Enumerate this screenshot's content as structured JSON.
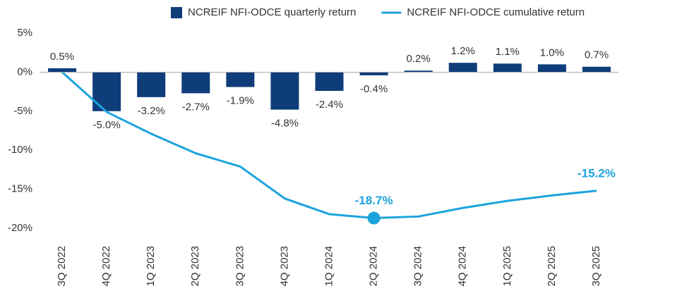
{
  "chart_data": {
    "type": "bar-line",
    "categories": [
      "3Q 2022",
      "4Q 2022",
      "1Q 2023",
      "2Q 2023",
      "3Q 2023",
      "4Q 2023",
      "1Q 2024",
      "2Q 2024",
      "3Q 2024",
      "4Q 2024",
      "1Q 2025",
      "2Q 2025",
      "3Q 2025"
    ],
    "series": [
      {
        "name": "NCREIF NFI-ODCE quarterly return",
        "type": "bar",
        "color": "#0f3d7a",
        "values": [
          0.5,
          -5.0,
          -3.2,
          -2.7,
          -1.9,
          -4.8,
          -2.4,
          -0.4,
          0.2,
          1.2,
          1.1,
          1.0,
          0.7
        ],
        "value_labels": [
          "0.5%",
          "-5.0%",
          "-3.2%",
          "-2.7%",
          "-1.9%",
          "-4.8%",
          "-2.4%",
          "-0.4%",
          "0.2%",
          "1.2%",
          "1.1%",
          "1.0%",
          "0.7%"
        ]
      },
      {
        "name": "NCREIF NFI-ODCE cumulative return",
        "type": "line",
        "color": "#1ba3dc",
        "values": [
          0,
          -5.1,
          -7.9,
          -10.4,
          -12.1,
          -16.2,
          -18.2,
          -18.7,
          -18.5,
          -17.4,
          -16.5,
          -15.8,
          -15.2
        ],
        "value_labels": [
          null,
          null,
          null,
          null,
          null,
          null,
          null,
          "-18.7%",
          null,
          null,
          null,
          null,
          "-15.2%"
        ],
        "marker_points": [
          7
        ]
      }
    ],
    "ylim": [
      -21,
      6
    ],
    "yticks": [
      {
        "value": 5,
        "label": "5%"
      },
      {
        "value": 0,
        "label": "0%"
      },
      {
        "value": -5,
        "label": "-5%"
      },
      {
        "value": -10,
        "label": "-10%"
      },
      {
        "value": -15,
        "label": "-15%"
      },
      {
        "value": -20,
        "label": "-20%"
      }
    ],
    "grid": false,
    "legend": "top"
  }
}
